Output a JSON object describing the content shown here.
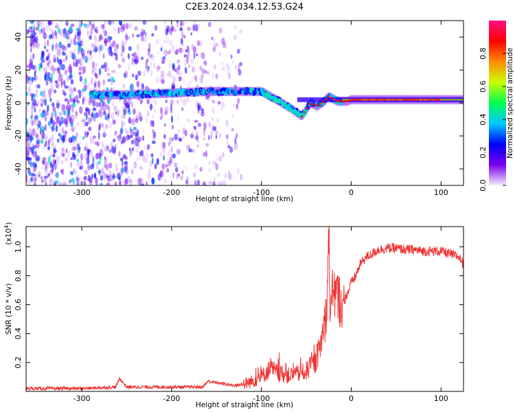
{
  "title": "C2E3.2024.034.12.53.G24",
  "chart_data": [
    {
      "type": "heatmap",
      "name": "spectrogram",
      "xlabel": "Height of straight line (km)",
      "ylabel": "Frequency (Hz)",
      "xlim": [
        -362,
        125
      ],
      "ylim": [
        -50,
        50
      ],
      "xticks": [
        -300,
        -200,
        -100,
        0,
        100
      ],
      "xtick_labels": [
        "-300",
        "-200",
        "-100",
        "0",
        "100"
      ],
      "yticks": [
        -40,
        -20,
        0,
        20,
        40
      ],
      "ytick_labels": [
        "-40",
        "-20",
        "0",
        "20",
        "40"
      ],
      "colorbar": {
        "label": "Normalized spectral amplitude",
        "range": [
          0,
          1
        ],
        "ticks": [
          0.0,
          0.2,
          0.4,
          0.6,
          0.8
        ],
        "tick_labels": [
          "0.0",
          "0.2",
          "0.4",
          "0.6",
          "0.8"
        ],
        "colors": [
          "#f4eefc",
          "#7b00ee",
          "#0000ff",
          "#00c8ff",
          "#00ff50",
          "#c8ff00",
          "#ff8c00",
          "#ff0000",
          "#ff1080"
        ]
      },
      "signal_track": {
        "description_x": [
          -280,
          -250,
          -200,
          -160,
          -130,
          -100,
          -90,
          -80,
          -65,
          -55,
          -45,
          -38,
          -30,
          -25,
          -15,
          -5,
          0,
          20,
          60,
          100,
          125
        ],
        "freq": [
          5,
          5,
          6,
          7,
          7,
          7,
          4,
          1,
          -4,
          -8,
          0,
          -2,
          1,
          4,
          1,
          1,
          2,
          2,
          2,
          2,
          2
        ]
      }
    },
    {
      "type": "line",
      "name": "snr",
      "xlabel": "Height of straight line (km)",
      "ylabel": "SNR (10 * v/v)",
      "y_multiplier": "(x10",
      "y_multiplier_exp": "4",
      "y_multiplier_close": ")",
      "xlim": [
        -362,
        125
      ],
      "ylim": [
        0,
        1.14
      ],
      "xticks": [
        -300,
        -200,
        -100,
        0,
        100
      ],
      "xtick_labels": [
        "-300",
        "-200",
        "-100",
        "0",
        "100"
      ],
      "yticks": [
        0.2,
        0.4,
        0.6,
        0.8,
        1.0
      ],
      "ytick_labels": [
        "0.2",
        "0.4",
        "0.6",
        "0.8",
        "1.0"
      ],
      "color": "#ee3333",
      "series": [
        {
          "name": "SNR",
          "x": [
            -362,
            -300,
            -262,
            -258,
            -250,
            -200,
            -165,
            -160,
            -130,
            -120,
            -110,
            -100,
            -90,
            -80,
            -70,
            -60,
            -50,
            -40,
            -35,
            -30,
            -27,
            -25,
            -23,
            -20,
            -15,
            -10,
            -5,
            0,
            5,
            10,
            15,
            20,
            30,
            40,
            50,
            60,
            70,
            80,
            90,
            100,
            110,
            120,
            125
          ],
          "y": [
            0.02,
            0.02,
            0.03,
            0.09,
            0.03,
            0.03,
            0.03,
            0.07,
            0.04,
            0.05,
            0.07,
            0.1,
            0.16,
            0.12,
            0.11,
            0.12,
            0.14,
            0.2,
            0.3,
            0.45,
            0.6,
            1.1,
            0.5,
            0.7,
            0.65,
            0.6,
            0.66,
            0.75,
            0.8,
            0.88,
            0.92,
            0.94,
            0.98,
            0.99,
            0.99,
            0.98,
            0.98,
            0.97,
            0.97,
            0.97,
            0.95,
            0.93,
            0.88
          ]
        }
      ]
    }
  ]
}
